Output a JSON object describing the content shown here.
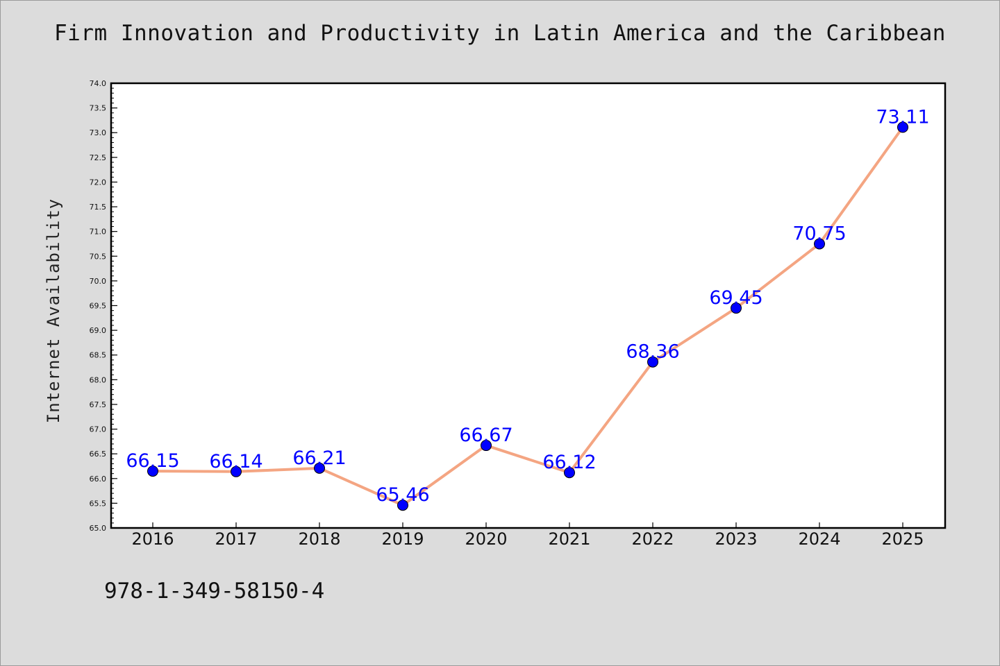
{
  "chart_data": {
    "type": "line",
    "title": "Firm Innovation and Productivity in Latin America and the Caribbean",
    "ylabel": "Internet Availability",
    "xlabel": "",
    "categories": [
      "2016",
      "2017",
      "2018",
      "2019",
      "2020",
      "2021",
      "2022",
      "2023",
      "2024",
      "2025"
    ],
    "series": [
      {
        "values": [
          66.15,
          66.14,
          66.21,
          65.46,
          66.67,
          66.12,
          68.36,
          69.45,
          70.75,
          73.11
        ]
      }
    ],
    "data_labels": [
      "66.15",
      "66.14",
      "66.21",
      "65.46",
      "66.67",
      "66.12",
      "68.36",
      "69.45",
      "70.75",
      "73.11"
    ],
    "ylim": [
      65.0,
      74.0
    ],
    "yticks": [
      "65.0",
      "65.5",
      "66.0",
      "66.5",
      "67.0",
      "67.5",
      "68.0",
      "68.5",
      "69.0",
      "69.5",
      "70.0",
      "70.5",
      "71.0",
      "71.5",
      "72.0",
      "72.5",
      "73.0",
      "73.5",
      "74.0"
    ],
    "grid": false,
    "colors": {
      "line": "#f4a582",
      "marker": "#0000ff",
      "label": "#0000ff",
      "background": "#dcdcdc",
      "plot_background": "#ffffff"
    }
  },
  "footnote": "978-1-349-58150-4"
}
